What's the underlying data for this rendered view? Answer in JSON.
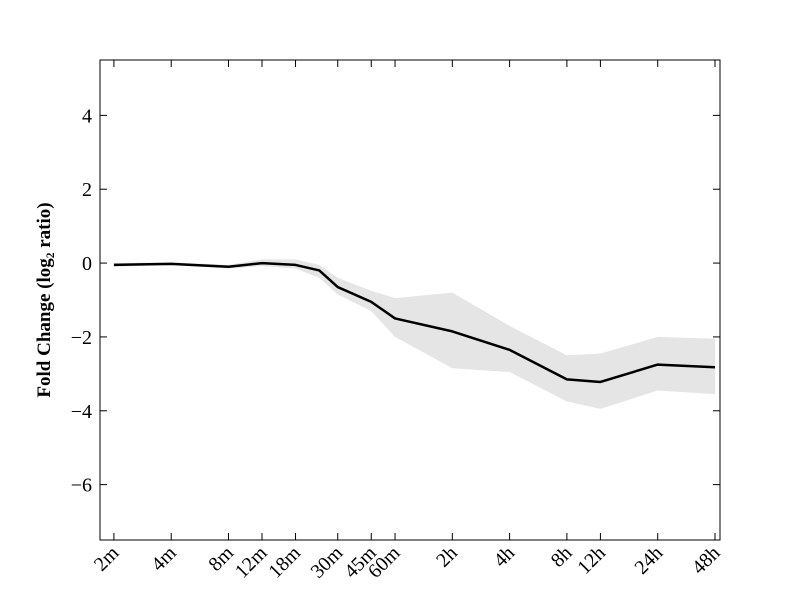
{
  "chart_data": {
    "type": "line",
    "ylabel": "Fold Change (log₂ ratio)",
    "x": [
      2,
      4,
      8,
      12,
      18,
      24,
      30,
      45,
      60,
      120,
      240,
      480,
      720,
      1440,
      2880
    ],
    "values": [
      -0.05,
      -0.02,
      -0.1,
      0,
      -0.05,
      -0.2,
      -0.65,
      -1.05,
      -1.5,
      -1.85,
      -2.35,
      -3.15,
      -3.22,
      -2.75,
      -2.82
    ],
    "lower": [
      -0.1,
      -0.05,
      -0.15,
      -0.08,
      -0.15,
      -0.4,
      -0.85,
      -1.3,
      -2.0,
      -2.85,
      -2.95,
      -3.75,
      -3.95,
      -3.45,
      -3.55
    ],
    "upper": [
      0.0,
      0.02,
      -0.05,
      0.1,
      0.1,
      -0.05,
      -0.4,
      -0.75,
      -0.95,
      -0.8,
      -1.7,
      -2.5,
      -2.45,
      -2.0,
      -2.05
    ],
    "color": "#000000",
    "band_color": "#e5e5e5",
    "xscale": "log",
    "xlim": [
      1.69,
      3060
    ],
    "xticks": [
      {
        "value": 2,
        "label": "2m"
      },
      {
        "value": 4,
        "label": "4m"
      },
      {
        "value": 8,
        "label": "8m"
      },
      {
        "value": 12,
        "label": "12m"
      },
      {
        "value": 18,
        "label": "18m"
      },
      {
        "value": 30,
        "label": "30m"
      },
      {
        "value": 45,
        "label": "45m"
      },
      {
        "value": 60,
        "label": "60m"
      },
      {
        "value": 120,
        "label": "2h"
      },
      {
        "value": 240,
        "label": "4h"
      },
      {
        "value": 480,
        "label": "8h"
      },
      {
        "value": 720,
        "label": "12h"
      },
      {
        "value": 1440,
        "label": "24h"
      },
      {
        "value": 2880,
        "label": "48h"
      }
    ],
    "ylim": [
      -7.5,
      5.5
    ],
    "yticks": [
      {
        "value": -6,
        "label": "−6"
      },
      {
        "value": -4,
        "label": "−4"
      },
      {
        "value": -2,
        "label": "−2"
      },
      0,
      2,
      4
    ]
  }
}
